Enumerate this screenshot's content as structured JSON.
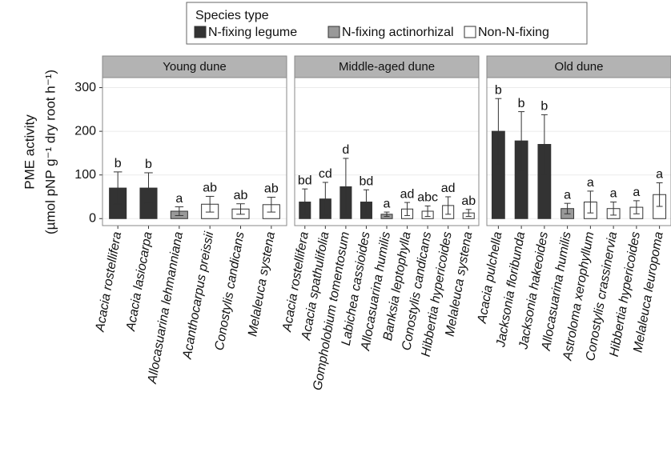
{
  "chart_data": {
    "type": "bar",
    "legend": {
      "title": "Species type",
      "entries": [
        {
          "name": "N-fixing legume",
          "color": "#333333"
        },
        {
          "name": "N-fixing actinorhizal",
          "color": "#999999"
        },
        {
          "name": "Non-N-fixing",
          "color": "#ffffff"
        }
      ]
    },
    "ylabel": [
      "PME activity",
      "(µmol pNP g⁻¹ dry root h⁻¹)"
    ],
    "ylim": [
      -16,
      323
    ],
    "yticks": [
      0,
      100,
      200,
      300
    ],
    "grid": true,
    "panels": [
      {
        "title": "Young dune",
        "categories": [
          "Acacia rostellifera",
          "Acacia lasiocarpa",
          "Allocasuarina lehmanniana",
          "Acanthocarpus preissii",
          "Conostylis candicans",
          "Melaleuca systena"
        ],
        "values": [
          70,
          70,
          17,
          33,
          22,
          32
        ],
        "errors": [
          37,
          35,
          10,
          18,
          12,
          17
        ],
        "labels": [
          "b",
          "b",
          "a",
          "ab",
          "ab",
          "ab"
        ],
        "colors": [
          "#333333",
          "#333333",
          "#999999",
          "#ffffff",
          "#ffffff",
          "#ffffff"
        ]
      },
      {
        "title": "Middle-aged dune",
        "categories": [
          "Acacia rostellifera",
          "Acacia spathulifolia",
          "Gompholobium tomentosum",
          "Labichea cassioides",
          "Allocasuarina humilis",
          "Banksia leptophylla",
          "Conostylis candicans",
          "Hibbertia hypericoides",
          "Melaleuca systena"
        ],
        "values": [
          38,
          45,
          73,
          38,
          10,
          22,
          17,
          30,
          13
        ],
        "errors": [
          30,
          38,
          65,
          28,
          5,
          15,
          12,
          20,
          8
        ],
        "labels": [
          "bd",
          "cd",
          "d",
          "bd",
          "a",
          "ad",
          "abc",
          "ad",
          "ab"
        ],
        "colors": [
          "#333333",
          "#333333",
          "#333333",
          "#333333",
          "#999999",
          "#ffffff",
          "#ffffff",
          "#ffffff",
          "#ffffff"
        ]
      },
      {
        "title": "Old dune",
        "categories": [
          "Acacia pulchella",
          "Jacksonia floribunda",
          "Jacksonia hakeoides",
          "Allocasuarina humilis",
          "Astroloma xerophyllum",
          "Conostylis crassinervia",
          "Hibbertia hypericoides",
          "Melaleuca leuropoma"
        ],
        "values": [
          200,
          178,
          170,
          23,
          38,
          23,
          26,
          55
        ],
        "errors": [
          75,
          67,
          68,
          12,
          25,
          15,
          15,
          27
        ],
        "labels": [
          "b",
          "b",
          "b",
          "a",
          "a",
          "a",
          "a",
          "a"
        ],
        "colors": [
          "#333333",
          "#333333",
          "#333333",
          "#999999",
          "#ffffff",
          "#ffffff",
          "#ffffff",
          "#ffffff"
        ]
      }
    ]
  }
}
